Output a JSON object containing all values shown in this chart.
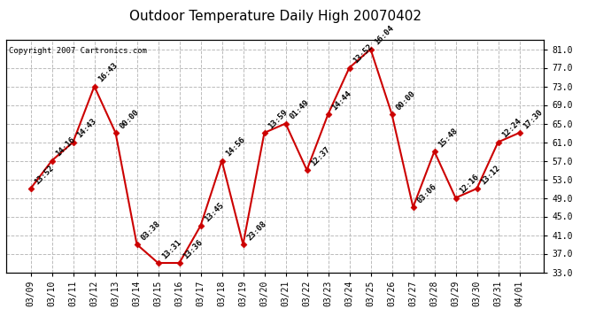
{
  "title": "Outdoor Temperature Daily High 20070402",
  "copyright": "Copyright 2007 Cartronics.com",
  "dates": [
    "03/09",
    "03/10",
    "03/11",
    "03/12",
    "03/13",
    "03/14",
    "03/15",
    "03/16",
    "03/17",
    "03/18",
    "03/19",
    "03/20",
    "03/21",
    "03/22",
    "03/23",
    "03/24",
    "03/25",
    "03/26",
    "03/27",
    "03/28",
    "03/29",
    "03/30",
    "03/31",
    "04/01"
  ],
  "values": [
    51,
    57,
    61,
    73,
    63,
    39,
    35,
    35,
    43,
    57,
    39,
    63,
    65,
    55,
    67,
    77,
    81,
    67,
    47,
    59,
    49,
    51,
    61,
    63
  ],
  "labels": [
    "13:52",
    "14:16",
    "14:43",
    "16:43",
    "00:00",
    "03:38",
    "13:31",
    "13:36",
    "13:45",
    "14:56",
    "23:08",
    "13:59",
    "01:49",
    "12:37",
    "14:44",
    "13:52",
    "16:04",
    "00:00",
    "03:06",
    "15:48",
    "12:16",
    "13:12",
    "12:24",
    "17:30"
  ],
  "line_color": "#cc0000",
  "marker_color": "#cc0000",
  "bg_color": "#ffffff",
  "grid_color": "#bbbbbb",
  "ylim": [
    33.0,
    83.0
  ],
  "yticks": [
    33.0,
    37.0,
    41.0,
    45.0,
    49.0,
    53.0,
    57.0,
    61.0,
    65.0,
    69.0,
    73.0,
    77.0,
    81.0
  ],
  "title_fontsize": 11,
  "label_fontsize": 6.5,
  "tick_fontsize": 7,
  "copyright_fontsize": 6.5
}
